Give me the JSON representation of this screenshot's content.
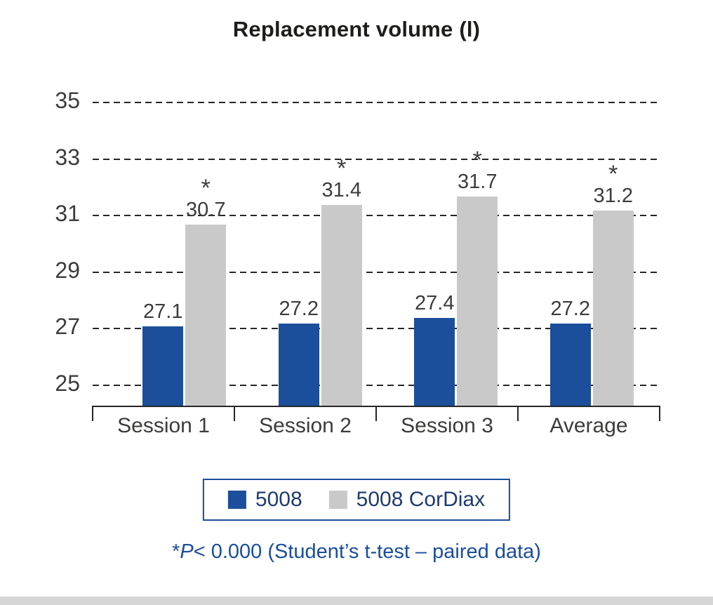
{
  "title": "Replacement volume (l)",
  "chart_data": {
    "type": "bar",
    "title": "Replacement volume (l)",
    "categories": [
      "Session 1",
      "Session 2",
      "Session 3",
      "Average"
    ],
    "series": [
      {
        "name": "5008",
        "color": "#1b4e9b",
        "values": [
          27.1,
          27.2,
          27.4,
          27.2
        ],
        "annotation": ""
      },
      {
        "name": "5008 CorDiax",
        "color": "#c9c9c9",
        "values": [
          30.7,
          31.4,
          31.7,
          31.2
        ],
        "annotation": "*"
      }
    ],
    "yticks": [
      25,
      27,
      29,
      31,
      33,
      35
    ],
    "ylim": [
      24.3,
      35.6
    ],
    "xlabel": "",
    "ylabel": "",
    "grid": "horizontal-dashed",
    "legend_position": "bottom"
  },
  "legend": {
    "items": [
      {
        "label": "5008",
        "color": "#1b4e9b"
      },
      {
        "label": "5008 CorDiax",
        "color": "#c9c9c9"
      }
    ]
  },
  "footnote": {
    "star": "*",
    "p_label": "P",
    "rest": "< 0.000  (Student’s t-test – paired data)"
  },
  "colors": {
    "bar_blue": "#1b4e9b",
    "bar_gray": "#c9c9c9",
    "axis": "#262626",
    "text": "#3c3c3b",
    "accent_blue": "#1b4e9b",
    "legend_text": "#1e3c70",
    "bottom_strip": "#d6d6d6"
  }
}
